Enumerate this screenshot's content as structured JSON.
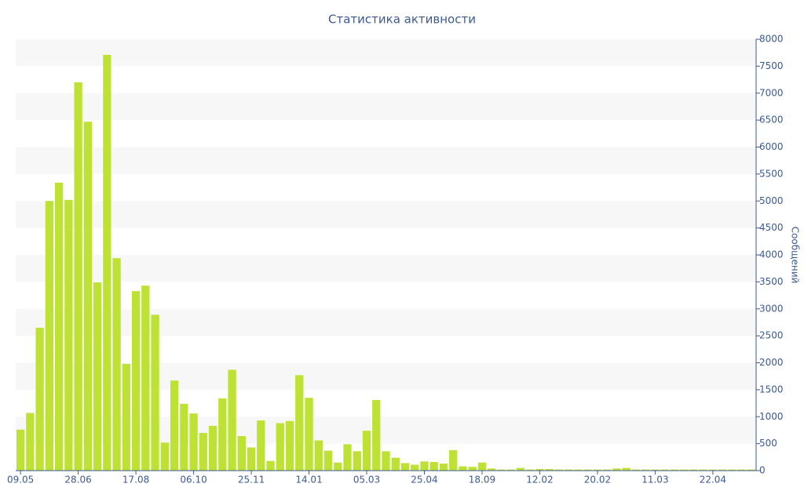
{
  "chart_data": {
    "type": "bar",
    "title": "Статистика активности",
    "y_axis_label": "Сообщений",
    "color": "#bde233",
    "band_color": "#f7f7f7",
    "grid": "bands",
    "y_axis_side": "right",
    "categories": [
      "09.05",
      null,
      null,
      null,
      null,
      null,
      "28.06",
      null,
      null,
      null,
      null,
      null,
      "17.08",
      null,
      null,
      null,
      null,
      null,
      "06.10",
      null,
      null,
      null,
      null,
      null,
      "25.11",
      null,
      null,
      null,
      null,
      null,
      "14.01",
      null,
      null,
      null,
      null,
      null,
      "05.03",
      null,
      null,
      null,
      null,
      null,
      "25.04",
      null,
      null,
      null,
      null,
      null,
      "18.09",
      null,
      null,
      null,
      null,
      null,
      "12.02",
      null,
      null,
      null,
      null,
      null,
      "20.02",
      null,
      null,
      null,
      null,
      null,
      "11.03",
      null,
      null,
      null,
      null,
      null,
      "22.04",
      null,
      null,
      null,
      null
    ],
    "values": [
      760,
      1070,
      2650,
      5000,
      5340,
      5020,
      7200,
      6470,
      3490,
      7710,
      3940,
      1980,
      3330,
      3430,
      2890,
      520,
      1670,
      1240,
      1060,
      700,
      830,
      1340,
      1870,
      640,
      430,
      930,
      180,
      880,
      920,
      1770,
      1350,
      560,
      370,
      150,
      490,
      360,
      740,
      1310,
      360,
      240,
      140,
      110,
      170,
      160,
      130,
      380,
      80,
      70,
      150,
      40,
      20,
      20,
      50,
      20,
      30,
      30,
      20,
      20,
      20,
      20,
      20,
      20,
      40,
      50,
      20,
      20,
      20,
      20,
      20,
      20,
      20,
      20,
      20,
      20,
      20,
      20,
      20
    ],
    "ylim": [
      0,
      8000
    ],
    "yticks": [
      0,
      500,
      1000,
      1500,
      2000,
      2500,
      3000,
      3500,
      4000,
      4500,
      5000,
      5500,
      6000,
      6500,
      7000,
      7500,
      8000
    ]
  }
}
